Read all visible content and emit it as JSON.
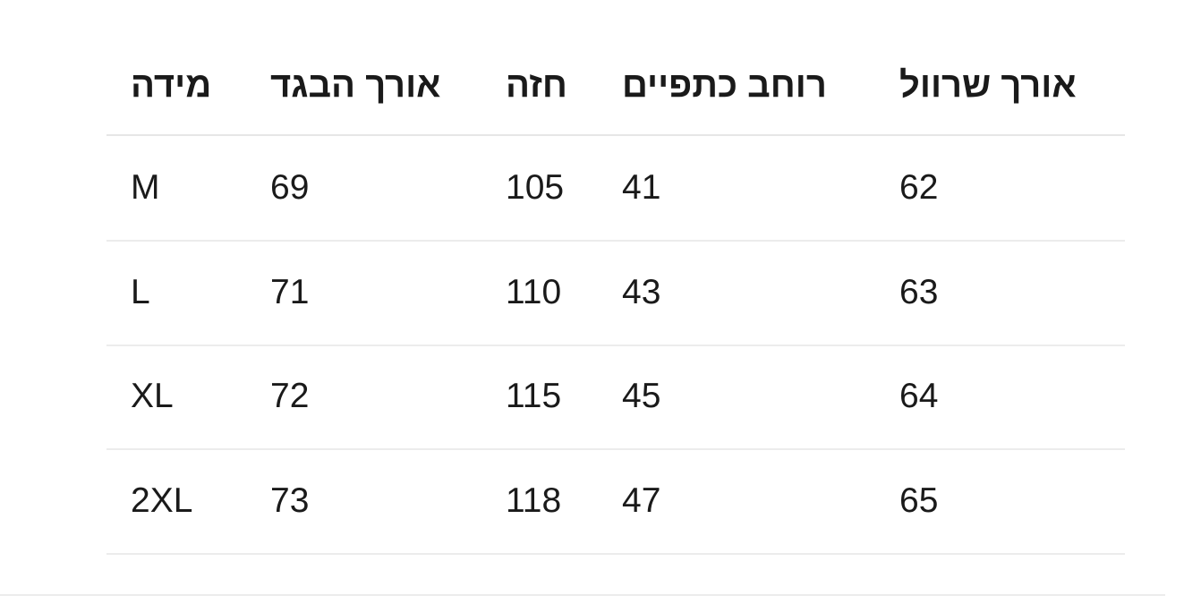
{
  "table": {
    "headers": [
      "מידה",
      "אורך הבגד",
      "חזה",
      "רוחב כתפיים",
      "אורך שרוול"
    ],
    "rows": [
      [
        "M",
        "69",
        "105",
        "41",
        "62"
      ],
      [
        "L",
        "71",
        "110",
        "43",
        "63"
      ],
      [
        "XL",
        "72",
        "115",
        "45",
        "64"
      ],
      [
        "2XL",
        "73",
        "118",
        "47",
        "65"
      ]
    ]
  }
}
